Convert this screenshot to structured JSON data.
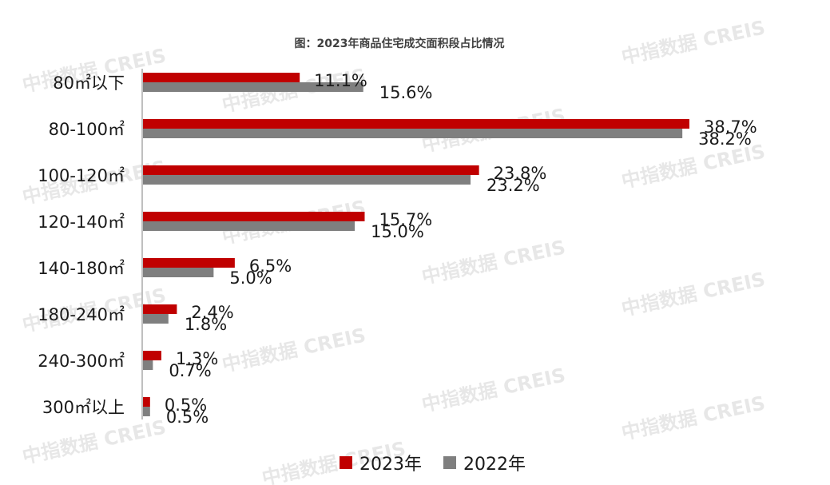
{
  "watermark": "中指数据 CREIS",
  "colors": {
    "s2023": "#C00000",
    "s2022": "#7F7F7F",
    "axis": "#BFBFBF"
  },
  "chart_data": {
    "type": "bar",
    "orientation": "horizontal",
    "title": "图：2023年商品住宅成交面积段占比情况",
    "categories": [
      "80㎡以下",
      "80-100㎡",
      "100-120㎡",
      "120-140㎡",
      "140-180㎡",
      "180-240㎡",
      "240-300㎡",
      "300㎡以上"
    ],
    "series": [
      {
        "name": "2023年",
        "values": [
          11.1,
          38.7,
          23.8,
          15.7,
          6.5,
          2.4,
          1.3,
          0.5
        ],
        "labels": [
          "11.1%",
          "38.7%",
          "23.8%",
          "15.7%",
          "6.5%",
          "2.4%",
          "1.3%",
          "0.5%"
        ]
      },
      {
        "name": "2022年",
        "values": [
          15.6,
          38.2,
          23.2,
          15.0,
          5.0,
          1.8,
          0.7,
          0.5
        ],
        "labels": [
          "15.6%",
          "38.2%",
          "23.2%",
          "15.0%",
          "5.0%",
          "1.8%",
          "0.7%",
          "0.5%"
        ]
      }
    ],
    "xlim": [
      0,
      40
    ],
    "legend_position": "bottom",
    "grid": false
  }
}
